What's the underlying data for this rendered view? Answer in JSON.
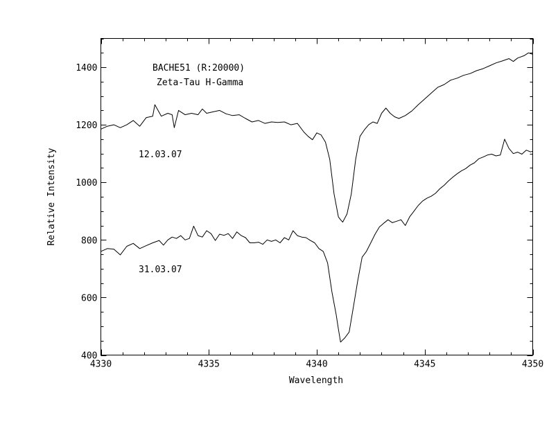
{
  "chart_data": {
    "type": "line",
    "title": "BACHE51 (R:20000)",
    "subtitle": "Zeta-Tau H-Gamma",
    "xlabel": "Wavelength",
    "ylabel": "Relative Intensity",
    "xlim": [
      4330,
      4350
    ],
    "ylim": [
      400,
      1500
    ],
    "x_ticks": [
      4330,
      4335,
      4340,
      4345,
      4350
    ],
    "y_ticks": [
      400,
      600,
      800,
      1000,
      1200,
      1400
    ],
    "grid": false,
    "series": [
      {
        "name": "12.03.07",
        "points": [
          [
            4330.0,
            1185
          ],
          [
            4330.3,
            1195
          ],
          [
            4330.6,
            1200
          ],
          [
            4330.9,
            1190
          ],
          [
            4331.2,
            1200
          ],
          [
            4331.5,
            1215
          ],
          [
            4331.8,
            1195
          ],
          [
            4332.1,
            1225
          ],
          [
            4332.4,
            1230
          ],
          [
            4332.5,
            1270
          ],
          [
            4332.8,
            1230
          ],
          [
            4333.1,
            1240
          ],
          [
            4333.3,
            1235
          ],
          [
            4333.4,
            1190
          ],
          [
            4333.6,
            1250
          ],
          [
            4333.9,
            1235
          ],
          [
            4334.2,
            1240
          ],
          [
            4334.5,
            1235
          ],
          [
            4334.7,
            1255
          ],
          [
            4334.9,
            1240
          ],
          [
            4335.2,
            1245
          ],
          [
            4335.5,
            1250
          ],
          [
            4335.8,
            1238
          ],
          [
            4336.1,
            1232
          ],
          [
            4336.4,
            1235
          ],
          [
            4336.7,
            1222
          ],
          [
            4337.0,
            1210
          ],
          [
            4337.3,
            1215
          ],
          [
            4337.6,
            1205
          ],
          [
            4337.9,
            1210
          ],
          [
            4338.2,
            1208
          ],
          [
            4338.5,
            1210
          ],
          [
            4338.8,
            1200
          ],
          [
            4339.1,
            1205
          ],
          [
            4339.4,
            1175
          ],
          [
            4339.6,
            1160
          ],
          [
            4339.8,
            1148
          ],
          [
            4340.0,
            1172
          ],
          [
            4340.2,
            1165
          ],
          [
            4340.4,
            1140
          ],
          [
            4340.6,
            1080
          ],
          [
            4340.8,
            960
          ],
          [
            4341.0,
            880
          ],
          [
            4341.1,
            870
          ],
          [
            4341.2,
            862
          ],
          [
            4341.4,
            890
          ],
          [
            4341.6,
            960
          ],
          [
            4341.8,
            1080
          ],
          [
            4342.0,
            1160
          ],
          [
            4342.2,
            1182
          ],
          [
            4342.4,
            1200
          ],
          [
            4342.6,
            1210
          ],
          [
            4342.8,
            1205
          ],
          [
            4343.0,
            1240
          ],
          [
            4343.2,
            1258
          ],
          [
            4343.4,
            1240
          ],
          [
            4343.6,
            1228
          ],
          [
            4343.8,
            1222
          ],
          [
            4344.1,
            1232
          ],
          [
            4344.4,
            1248
          ],
          [
            4344.7,
            1270
          ],
          [
            4345.0,
            1290
          ],
          [
            4345.3,
            1310
          ],
          [
            4345.6,
            1330
          ],
          [
            4345.9,
            1340
          ],
          [
            4346.2,
            1355
          ],
          [
            4346.5,
            1362
          ],
          [
            4346.8,
            1372
          ],
          [
            4347.1,
            1378
          ],
          [
            4347.4,
            1388
          ],
          [
            4347.7,
            1395
          ],
          [
            4348.0,
            1405
          ],
          [
            4348.3,
            1415
          ],
          [
            4348.6,
            1422
          ],
          [
            4348.9,
            1430
          ],
          [
            4349.1,
            1420
          ],
          [
            4349.3,
            1432
          ],
          [
            4349.6,
            1440
          ],
          [
            4349.8,
            1450
          ],
          [
            4350.0,
            1445
          ]
        ]
      },
      {
        "name": "31.03.07",
        "points": [
          [
            4330.0,
            760
          ],
          [
            4330.3,
            770
          ],
          [
            4330.6,
            768
          ],
          [
            4330.9,
            748
          ],
          [
            4331.2,
            778
          ],
          [
            4331.5,
            788
          ],
          [
            4331.8,
            770
          ],
          [
            4332.1,
            780
          ],
          [
            4332.4,
            790
          ],
          [
            4332.7,
            798
          ],
          [
            4332.9,
            782
          ],
          [
            4333.1,
            800
          ],
          [
            4333.3,
            810
          ],
          [
            4333.5,
            805
          ],
          [
            4333.7,
            815
          ],
          [
            4333.9,
            800
          ],
          [
            4334.1,
            805
          ],
          [
            4334.3,
            848
          ],
          [
            4334.5,
            815
          ],
          [
            4334.7,
            810
          ],
          [
            4334.9,
            832
          ],
          [
            4335.1,
            822
          ],
          [
            4335.3,
            798
          ],
          [
            4335.5,
            820
          ],
          [
            4335.7,
            816
          ],
          [
            4335.9,
            822
          ],
          [
            4336.1,
            805
          ],
          [
            4336.3,
            828
          ],
          [
            4336.5,
            815
          ],
          [
            4336.7,
            808
          ],
          [
            4336.9,
            790
          ],
          [
            4337.1,
            790
          ],
          [
            4337.3,
            792
          ],
          [
            4337.5,
            785
          ],
          [
            4337.7,
            800
          ],
          [
            4337.9,
            795
          ],
          [
            4338.1,
            800
          ],
          [
            4338.3,
            790
          ],
          [
            4338.5,
            808
          ],
          [
            4338.7,
            800
          ],
          [
            4338.9,
            832
          ],
          [
            4339.1,
            815
          ],
          [
            4339.3,
            810
          ],
          [
            4339.5,
            808
          ],
          [
            4339.7,
            798
          ],
          [
            4339.9,
            790
          ],
          [
            4340.1,
            770
          ],
          [
            4340.3,
            760
          ],
          [
            4340.5,
            720
          ],
          [
            4340.7,
            620
          ],
          [
            4340.9,
            540
          ],
          [
            4341.0,
            490
          ],
          [
            4341.1,
            445
          ],
          [
            4341.3,
            460
          ],
          [
            4341.5,
            480
          ],
          [
            4341.7,
            570
          ],
          [
            4341.9,
            660
          ],
          [
            4342.1,
            740
          ],
          [
            4342.3,
            760
          ],
          [
            4342.5,
            790
          ],
          [
            4342.7,
            820
          ],
          [
            4342.9,
            845
          ],
          [
            4343.1,
            858
          ],
          [
            4343.3,
            870
          ],
          [
            4343.5,
            860
          ],
          [
            4343.7,
            865
          ],
          [
            4343.9,
            870
          ],
          [
            4344.1,
            850
          ],
          [
            4344.3,
            880
          ],
          [
            4344.5,
            900
          ],
          [
            4344.7,
            920
          ],
          [
            4344.9,
            935
          ],
          [
            4345.1,
            945
          ],
          [
            4345.3,
            952
          ],
          [
            4345.5,
            962
          ],
          [
            4345.7,
            978
          ],
          [
            4345.9,
            990
          ],
          [
            4346.1,
            1005
          ],
          [
            4346.3,
            1018
          ],
          [
            4346.5,
            1030
          ],
          [
            4346.7,
            1040
          ],
          [
            4346.9,
            1048
          ],
          [
            4347.1,
            1060
          ],
          [
            4347.3,
            1068
          ],
          [
            4347.5,
            1082
          ],
          [
            4347.7,
            1088
          ],
          [
            4347.9,
            1095
          ],
          [
            4348.1,
            1098
          ],
          [
            4348.3,
            1092
          ],
          [
            4348.5,
            1095
          ],
          [
            4348.7,
            1150
          ],
          [
            4348.9,
            1118
          ],
          [
            4349.1,
            1100
          ],
          [
            4349.3,
            1105
          ],
          [
            4349.5,
            1098
          ],
          [
            4349.7,
            1112
          ],
          [
            4349.9,
            1106
          ],
          [
            4350.0,
            1108
          ]
        ]
      }
    ]
  }
}
